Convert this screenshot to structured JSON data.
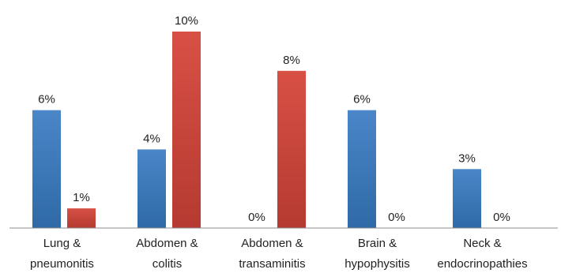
{
  "chart_data": {
    "type": "bar",
    "title": "",
    "xlabel": "",
    "ylabel": "",
    "ylim": [
      0,
      10
    ],
    "grid": false,
    "legend": "none",
    "categories": [
      [
        "Lung &",
        "pneumonitis"
      ],
      [
        "Abdomen &",
        "colitis"
      ],
      [
        "Abdomen &",
        "transaminitis"
      ],
      [
        "Brain &",
        "hypophysitis"
      ],
      [
        "Neck &",
        "endocrinopathies"
      ]
    ],
    "series": [
      {
        "values": [
          6,
          4,
          0,
          6,
          3
        ],
        "labels": [
          "6%",
          "4%",
          "0%",
          "6%",
          "3%"
        ],
        "color": "#4a86c8",
        "color_dark": "#2f6aa6"
      },
      {
        "values": [
          1,
          10,
          8,
          0,
          0
        ],
        "labels": [
          "1%",
          "10%",
          "8%",
          "0%",
          "0%"
        ],
        "color": "#d85045",
        "color_dark": "#b53a31"
      }
    ]
  }
}
